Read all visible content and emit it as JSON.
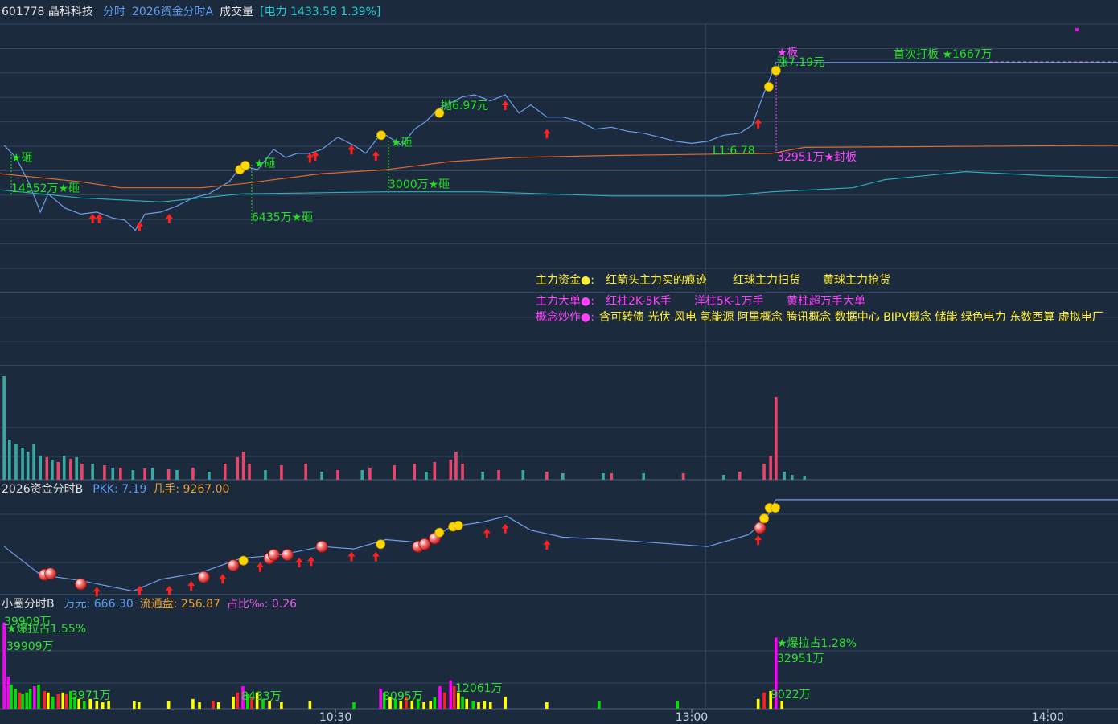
{
  "chart_data": [
    {
      "type": "line",
      "title": "601778 晶科科技",
      "indicators": [
        {
          "text": "分时",
          "color": "#5a9cf0"
        },
        {
          "text": "2026资金分时A",
          "color": "#5a9cf0"
        },
        {
          "text": "成交量",
          "color": "#e8e8e8"
        },
        {
          "text": "[电力 1433.58 1.39%]",
          "color": "#20d0d0"
        }
      ],
      "xlim": [
        3.5,
        191.8
      ],
      "ylim": [
        5.69,
        7.38
      ],
      "series": [
        {
          "color": "#6e9fe8",
          "x": [
            4.2,
            6.2,
            8.3,
            10.3,
            11.6,
            14.4,
            17.1,
            19.8,
            22.5,
            24.5,
            26.3,
            27.9,
            30.6,
            33.3,
            36.0,
            38.7,
            42.1,
            44.2,
            46.9,
            49.6,
            51.6,
            53.6,
            55.7,
            57.7,
            60.4,
            63.1,
            65.1,
            67.2,
            68.5,
            71.2,
            73.3,
            75.3,
            77.3,
            79.4,
            81.4,
            83.4,
            86.1,
            88.6,
            90.9,
            92.9,
            95.6,
            98.3,
            101.0,
            103.7,
            106.5,
            109.2,
            111.9,
            114.6,
            117.3,
            120.0,
            122.7,
            125.4,
            128.1,
            130.2,
            132.2,
            133.3,
            134.2,
            191.8
          ],
          "values": [
            6.78,
            6.72,
            6.6,
            6.45,
            6.54,
            6.47,
            6.44,
            6.45,
            6.42,
            6.41,
            6.36,
            6.44,
            6.45,
            6.48,
            6.52,
            6.54,
            6.6,
            6.68,
            6.66,
            6.76,
            6.72,
            6.74,
            6.74,
            6.76,
            6.82,
            6.78,
            6.74,
            6.82,
            6.83,
            6.78,
            6.86,
            6.9,
            6.96,
            6.99,
            7.02,
            7.03,
            7.0,
            7.03,
            6.94,
            6.98,
            6.92,
            6.92,
            6.9,
            6.86,
            6.87,
            6.85,
            6.84,
            6.82,
            6.8,
            6.79,
            6.8,
            6.83,
            6.84,
            6.88,
            7.04,
            7.12,
            7.19,
            7.19
          ]
        },
        {
          "color": "#e06a28",
          "x": [
            3.5,
            17.1,
            23.8,
            37.4,
            44.2,
            57.7,
            68.5,
            79.4,
            90.2,
            106.5,
            133.5,
            139.0,
            191.8
          ],
          "values": [
            6.64,
            6.6,
            6.57,
            6.57,
            6.59,
            6.64,
            6.66,
            6.7,
            6.72,
            6.73,
            6.74,
            6.77,
            6.78
          ]
        },
        {
          "color": "#2ab0b8",
          "x": [
            3.5,
            17.1,
            30.6,
            44.2,
            68.5,
            84.8,
            106.5,
            125.4,
            133.5,
            147.1,
            152.5,
            166.1,
            179.6,
            191.8
          ],
          "values": [
            6.56,
            6.52,
            6.5,
            6.54,
            6.55,
            6.55,
            6.53,
            6.53,
            6.55,
            6.57,
            6.61,
            6.65,
            6.63,
            6.62
          ]
        }
      ],
      "arrows": {
        "color": "#ff2020",
        "x": [
          19.1,
          20.2,
          27.0,
          32.0,
          55.7,
          56.6,
          62.7,
          66.8,
          88.6,
          95.6,
          131.2
        ],
        "y": [
          6.45,
          6.45,
          6.41,
          6.45,
          6.75,
          6.76,
          6.79,
          6.76,
          7.01,
          6.87,
          6.92
        ]
      },
      "balls": {
        "color": "#ffd700",
        "x": [
          43.9,
          44.8,
          67.7,
          77.5,
          133.0,
          134.2
        ],
        "y": [
          6.66,
          6.68,
          6.83,
          6.94,
          7.07,
          7.15
        ]
      },
      "annotations": [
        {
          "text": "★砸",
          "color": "#20e020"
        },
        {
          "text": "14552万★砸",
          "color": "#20e020"
        },
        {
          "text": "6435万★砸",
          "color": "#20e020"
        },
        {
          "text": "★砸",
          "color": "#20e020"
        },
        {
          "text": "★砸",
          "color": "#20e020"
        },
        {
          "text": "3000万★砸",
          "color": "#20e020"
        },
        {
          "text": "抛6.97元",
          "color": "#20e020"
        },
        {
          "text": "★板",
          "color": "#ff40ff"
        },
        {
          "text": "涨7.19元",
          "color": "#20e020"
        },
        {
          "text": "首次打板 ★1667万",
          "color": "#20e020"
        },
        {
          "text": "L1:6.78",
          "color": "#20e020"
        },
        {
          "text": "32951万★封板",
          "color": "#ff40ff"
        }
      ],
      "legend_lines": [
        [
          {
            "text": "主力资金●:",
            "color": "#ffee30"
          },
          {
            "text": "红箭头主力买的痕迹",
            "color": "#ffee30"
          },
          {
            "text": "红球主力扫货",
            "color": "#ffee30"
          },
          {
            "text": "黄球主力抢货",
            "color": "#ffee30"
          }
        ],
        [
          {
            "text": "主力大单●:",
            "color": "#ff40ff"
          },
          {
            "text": "红柱2K-5K手",
            "color": "#ff40ff"
          },
          {
            "text": "洋柱5K-1万手",
            "color": "#ff40ff"
          },
          {
            "text": "黄柱超万手大单",
            "color": "#ff40ff"
          }
        ],
        [
          {
            "text": "概念炒作●:",
            "color": "#ff40ff"
          },
          {
            "text": "含可转债 光伏 风电 氢能源 阿里概念 腾讯概念 数据中心 BIPV概念 储能 绿色电力 东数西算 虚拟电厂",
            "color": "#ffee30"
          }
        ]
      ]
    },
    {
      "type": "bar",
      "xlim": [
        3.5,
        191.8
      ],
      "ylim": [
        0,
        130
      ],
      "series": [
        {
          "color": "#3aa8a0",
          "x": [
            4.2,
            5.1,
            6.2,
            7.3,
            8.2,
            9.2,
            10.3,
            12.3,
            14.3,
            16.4,
            19.1,
            22.5,
            25.9,
            29.2,
            33.3,
            38.7,
            48.2,
            57.7,
            64.5,
            75.3,
            84.8,
            91.6,
            98.3,
            105.1,
            111.9,
            118.6,
            125.4,
            135.6,
            136.9,
            139.0
          ],
          "values": [
            129,
            50,
            45,
            40,
            35,
            45,
            30,
            25,
            30,
            28,
            20,
            15,
            12,
            15,
            12,
            10,
            12,
            10,
            12,
            10,
            10,
            12,
            8,
            8,
            8,
            8,
            6,
            10,
            6,
            5
          ]
        },
        {
          "color": "#e8456a",
          "x": [
            11.4,
            13.3,
            15.4,
            17.3,
            21.1,
            23.8,
            27.9,
            31.9,
            36.0,
            41.4,
            43.5,
            44.5,
            45.5,
            50.9,
            55.0,
            60.4,
            65.8,
            69.9,
            73.3,
            76.7,
            79.4,
            80.3,
            81.4,
            87.5,
            95.6,
            106.5,
            118.6,
            128.1,
            132.2,
            133.3,
            134.2
          ],
          "values": [
            28,
            22,
            26,
            20,
            18,
            15,
            14,
            13,
            15,
            20,
            28,
            35,
            20,
            18,
            20,
            12,
            15,
            18,
            20,
            22,
            25,
            35,
            20,
            12,
            10,
            8,
            8,
            10,
            20,
            30,
            103
          ]
        }
      ]
    },
    {
      "type": "line",
      "title": "2026资金分时B",
      "indicators": [
        {
          "text": "PKK: 7.19",
          "color": "#5a9cf0"
        },
        {
          "text": "几手: 9267.00",
          "color": "#e8a030"
        }
      ],
      "xlim": [
        3.5,
        191.8
      ],
      "ylim": [
        6.38,
        7.34
      ],
      "series": [
        {
          "color": "#6e9fe8",
          "x": [
            4.2,
            10.3,
            17.1,
            25.9,
            30.6,
            37.4,
            44.1,
            50.9,
            57.7,
            63.1,
            68.5,
            75.3,
            79.4,
            84.8,
            88.8,
            92.9,
            98.3,
            106.5,
            114.6,
            122.7,
            129.5,
            132.2,
            133.3,
            134.2,
            191.8
          ],
          "values": [
            6.79,
            6.55,
            6.5,
            6.41,
            6.51,
            6.57,
            6.69,
            6.72,
            6.79,
            6.77,
            6.85,
            6.82,
            6.96,
            7.0,
            7.05,
            6.93,
            6.87,
            6.85,
            6.82,
            6.79,
            6.89,
            7.0,
            7.1,
            7.19,
            7.19
          ]
        }
      ],
      "arrows": {
        "color": "#ff2020",
        "x": [
          19.8,
          27.0,
          32.0,
          35.7,
          41.0,
          47.3,
          53.9,
          55.9,
          62.7,
          66.8,
          85.5,
          88.6,
          95.6,
          131.2
        ],
        "y": [
          6.46,
          6.47,
          6.47,
          6.51,
          6.57,
          6.67,
          6.71,
          6.72,
          6.76,
          6.76,
          6.96,
          7.0,
          6.86,
          6.9
        ]
      },
      "balls": {
        "color": "#ffd700",
        "x": [
          44.5,
          67.6,
          77.5,
          79.8,
          80.7,
          132.2,
          133.1,
          134.1
        ],
        "y": [
          6.67,
          6.81,
          6.91,
          6.96,
          6.97,
          7.03,
          7.12,
          7.12
        ]
      },
      "red_balls": {
        "color": "#f04848",
        "x": [
          11.0,
          12.0,
          17.1,
          37.8,
          42.8,
          48.9,
          49.6,
          51.9,
          57.7,
          73.9,
          75.0,
          76.7,
          131.5
        ],
        "y": [
          6.55,
          6.56,
          6.47,
          6.53,
          6.63,
          6.69,
          6.72,
          6.72,
          6.79,
          6.79,
          6.81,
          6.86,
          6.95
        ]
      }
    },
    {
      "type": "bar",
      "title": "小圈分时B",
      "indicators": [
        {
          "text": "万元: 666.30",
          "color": "#5a9cf0"
        },
        {
          "text": "流通盘: 256.87",
          "color": "#e8a030"
        },
        {
          "text": "占比‰: 0.26",
          "color": "#e060e0"
        }
      ],
      "xlim": [
        3.5,
        191.8
      ],
      "ylim": [
        0,
        42000
      ],
      "xticks": [
        {
          "value": 60,
          "label": "10:30"
        },
        {
          "value": 120,
          "label": "13:00"
        },
        {
          "value": 180,
          "label": "14:00"
        }
      ],
      "x": [
        4.2,
        4.9,
        5.4,
        6.1,
        6.8,
        7.3,
        8.0,
        8.6,
        9.3,
        10.0,
        11.0,
        11.6,
        12.4,
        13.3,
        14.1,
        14.7,
        15.4,
        16.1,
        16.8,
        17.7,
        18.7,
        19.8,
        20.8,
        21.8,
        26.1,
        26.9,
        31.9,
        36.0,
        37.1,
        39.4,
        40.3,
        42.8,
        43.5,
        44.4,
        45.2,
        45.9,
        46.8,
        47.8,
        48.9,
        50.9,
        55.7,
        63.1,
        67.6,
        68.2,
        69.2,
        70.1,
        71.0,
        71.9,
        72.9,
        73.9,
        74.9,
        76.0,
        76.7,
        77.6,
        78.4,
        79.4,
        80.0,
        80.7,
        81.4,
        82.1,
        83.2,
        84.1,
        85.1,
        86.1,
        88.6,
        95.6,
        104.4,
        117.6,
        131.2,
        132.2,
        133.3,
        134.2,
        135.2
      ],
      "values": [
        39909,
        14900,
        11200,
        9300,
        7500,
        6700,
        7500,
        9300,
        10400,
        11200,
        8200,
        7500,
        5600,
        6700,
        7500,
        6700,
        8200,
        5600,
        4500,
        3700,
        4500,
        3700,
        3000,
        3700,
        3700,
        3000,
        3700,
        4500,
        3000,
        3700,
        3000,
        5600,
        7500,
        10400,
        6700,
        5600,
        7500,
        4500,
        3700,
        3000,
        3700,
        3000,
        9300,
        7500,
        5600,
        4500,
        3700,
        5600,
        3700,
        4500,
        3000,
        3700,
        5200,
        10400,
        7500,
        13100,
        10400,
        7500,
        5600,
        4500,
        3700,
        3000,
        3700,
        3000,
        5600,
        3000,
        3700,
        3700,
        4500,
        7500,
        8200,
        32951,
        3700
      ],
      "colors": [
        "#ff00ff",
        "#ff00ff",
        "#00e000",
        "#00e000",
        "#ff2020",
        "#00e000",
        "#00e000",
        "#00e000",
        "#ff00ff",
        "#00e000",
        "#ff2020",
        "#ffff00",
        "#00e000",
        "#ff2020",
        "#ffff00",
        "#ff2020",
        "#00e000",
        "#00e000",
        "#ffff00",
        "#00e000",
        "#ffff00",
        "#ffff00",
        "#ffff00",
        "#ffff00",
        "#ffff00",
        "#ffff00",
        "#ffff00",
        "#ffff00",
        "#ffff00",
        "#ff2020",
        "#ffff00",
        "#ffff00",
        "#ff2020",
        "#ff00ff",
        "#00e000",
        "#ff2020",
        "#ffff00",
        "#00e000",
        "#ffff00",
        "#ffff00",
        "#ffff00",
        "#00e000",
        "#ff00ff",
        "#00e000",
        "#ffff00",
        "#00e000",
        "#ffff00",
        "#ff2020",
        "#ffff00",
        "#00e000",
        "#ffff00",
        "#ffff00",
        "#00e000",
        "#ff00ff",
        "#ff2020",
        "#ff00ff",
        "#ff2020",
        "#ffff00",
        "#00e000",
        "#ffff00",
        "#00e000",
        "#ffff00",
        "#ffff00",
        "#ffff00",
        "#ffff00",
        "#ffff00",
        "#00e000",
        "#00e000",
        "#ffff00",
        "#ff2020",
        "#ffff00",
        "#ff00ff",
        "#ffff00"
      ],
      "annotations": [
        {
          "text": "39909万",
          "color": "#30e030"
        },
        {
          "text": "★爆拉占1.55%",
          "color": "#30e030"
        },
        {
          "text": "39909万",
          "color": "#30e030"
        },
        {
          "text": "3971万",
          "color": "#30e030"
        },
        {
          "text": "8433万",
          "color": "#30e030"
        },
        {
          "text": "8095万",
          "color": "#30e030"
        },
        {
          "text": "12061万",
          "color": "#30e030"
        },
        {
          "text": "★爆拉占1.28%",
          "color": "#30e030"
        },
        {
          "text": "32951万",
          "color": "#30e030"
        },
        {
          "text": "9022万",
          "color": "#30e030"
        }
      ]
    }
  ]
}
